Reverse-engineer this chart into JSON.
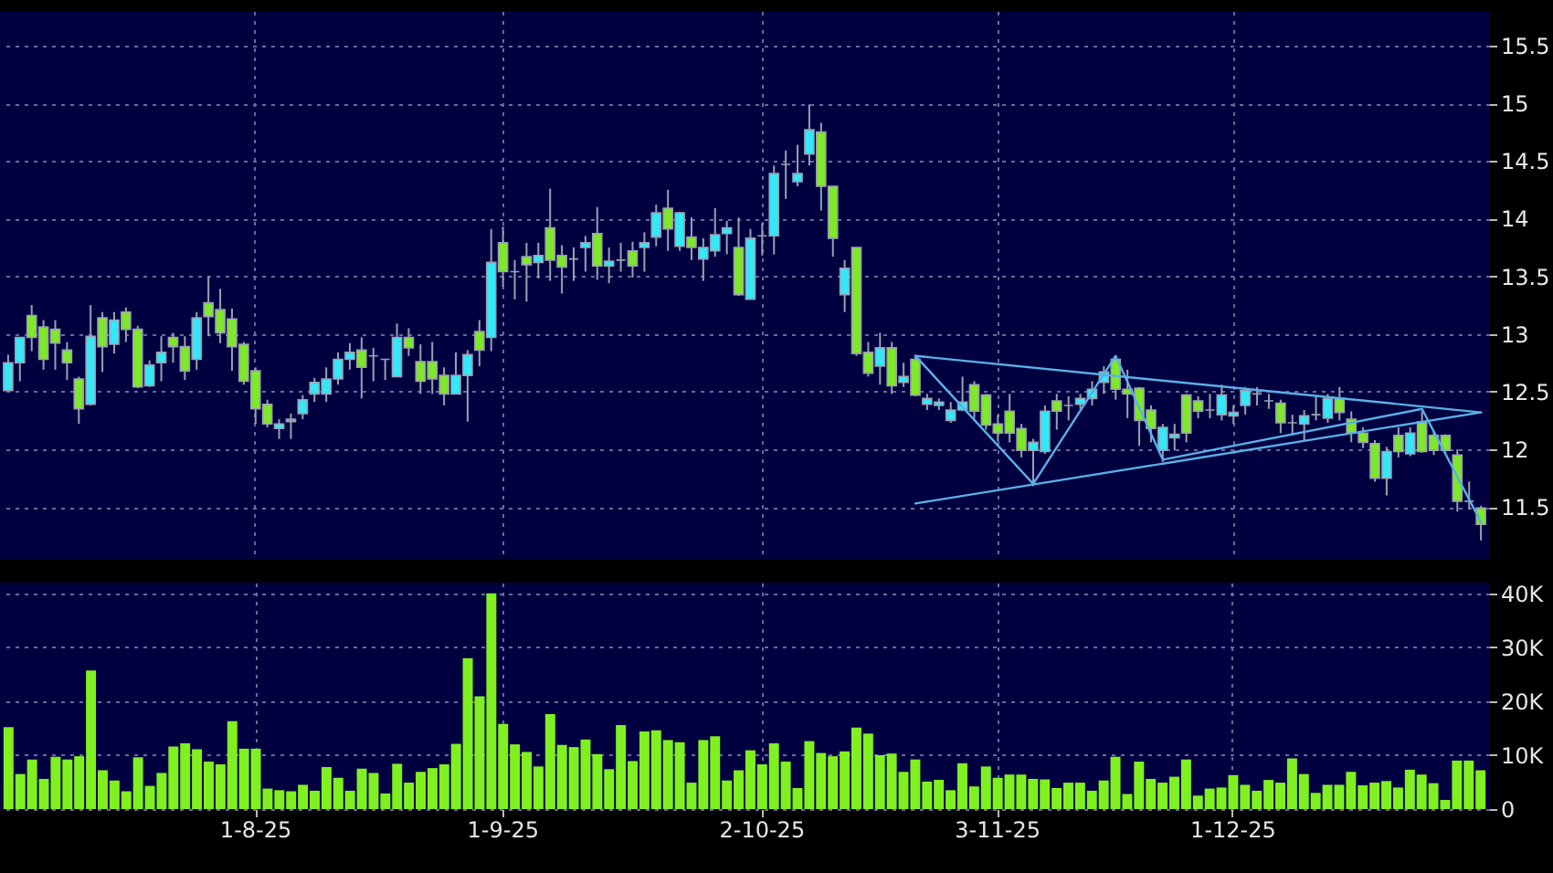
{
  "chart_data": [
    {
      "type": "candlestick",
      "categories": [
        null,
        null,
        null,
        null,
        null,
        null,
        null,
        null,
        null,
        null,
        null,
        null,
        null,
        null,
        null,
        null,
        null,
        null,
        null,
        null,
        null,
        null,
        null,
        null,
        null,
        null,
        null,
        null,
        null,
        null,
        null,
        null,
        null,
        null,
        null,
        null,
        null,
        null,
        null,
        null,
        null,
        null,
        null,
        null,
        null,
        null,
        null,
        null,
        null,
        null,
        null,
        null,
        null,
        null,
        null,
        null,
        null,
        null,
        null,
        null,
        null,
        null,
        null,
        null,
        null,
        null,
        null,
        null,
        null,
        null,
        null,
        null,
        null,
        null,
        null,
        null,
        null,
        null,
        null,
        null,
        null,
        null,
        null,
        null,
        null,
        null,
        null,
        null,
        null,
        null,
        null,
        null,
        null,
        null,
        null,
        null,
        null,
        null,
        null,
        null,
        null,
        null,
        null,
        null,
        null,
        null,
        null,
        null,
        null,
        null,
        null,
        null,
        null,
        null,
        null,
        null,
        null,
        null,
        null,
        null,
        null,
        null,
        null,
        null,
        null,
        null
      ],
      "ohlc": [
        [
          12.51,
          12.82,
          12.51,
          12.75
        ],
        [
          12.75,
          12.97,
          12.59,
          12.97
        ],
        [
          13.16,
          13.25,
          12.85,
          12.97
        ],
        [
          13.06,
          13.12,
          12.69,
          12.78
        ],
        [
          13.04,
          13.12,
          12.69,
          12.92
        ],
        [
          12.86,
          12.93,
          12.6,
          12.75
        ],
        [
          12.61,
          12.63,
          12.22,
          12.35
        ],
        [
          12.39,
          13.25,
          12.38,
          12.98
        ],
        [
          13.14,
          13.19,
          12.67,
          12.89
        ],
        [
          12.91,
          13.19,
          12.83,
          13.12
        ],
        [
          13.19,
          13.23,
          12.93,
          13.04
        ],
        [
          13.04,
          13.07,
          12.53,
          12.54
        ],
        [
          12.55,
          12.77,
          12.54,
          12.73
        ],
        [
          12.75,
          12.98,
          12.59,
          12.84
        ],
        [
          12.97,
          13.01,
          12.75,
          12.89
        ],
        [
          12.89,
          12.98,
          12.6,
          12.68
        ],
        [
          12.78,
          13.19,
          12.69,
          13.14
        ],
        [
          13.27,
          13.5,
          12.98,
          13.15
        ],
        [
          13.21,
          13.39,
          12.92,
          13.01
        ],
        [
          13.13,
          13.22,
          12.68,
          12.89
        ],
        [
          12.91,
          12.93,
          12.56,
          12.59
        ],
        [
          12.68,
          12.71,
          12.22,
          12.35
        ],
        [
          12.39,
          12.43,
          12.19,
          12.22
        ],
        [
          12.18,
          12.26,
          12.09,
          12.22
        ],
        [
          12.24,
          12.31,
          12.09,
          12.26
        ],
        [
          12.31,
          12.47,
          12.26,
          12.43
        ],
        [
          12.48,
          12.62,
          12.41,
          12.58
        ],
        [
          12.48,
          12.71,
          12.41,
          12.61
        ],
        [
          12.61,
          12.84,
          12.56,
          12.78
        ],
        [
          12.78,
          12.92,
          12.69,
          12.84
        ],
        [
          12.86,
          12.97,
          12.44,
          12.71
        ],
        [
          12.81,
          12.88,
          12.59,
          12.81
        ],
        [
          12.78,
          12.78,
          12.6,
          12.78
        ],
        [
          12.63,
          13.09,
          12.63,
          12.97
        ],
        [
          12.97,
          13.05,
          12.81,
          12.88
        ],
        [
          12.76,
          12.91,
          12.48,
          12.59
        ],
        [
          12.76,
          12.93,
          12.48,
          12.61
        ],
        [
          12.64,
          12.71,
          12.38,
          12.48
        ],
        [
          12.48,
          12.84,
          12.48,
          12.64
        ],
        [
          12.64,
          12.86,
          12.24,
          12.82
        ],
        [
          13.02,
          13.12,
          12.72,
          12.86
        ],
        [
          12.97,
          13.91,
          12.85,
          13.62
        ],
        [
          13.79,
          13.93,
          13.41,
          13.54
        ],
        [
          13.54,
          13.64,
          13.3,
          13.54
        ],
        [
          13.67,
          13.79,
          13.28,
          13.6
        ],
        [
          13.62,
          13.79,
          13.48,
          13.68
        ],
        [
          13.92,
          14.26,
          13.46,
          13.64
        ],
        [
          13.68,
          13.77,
          13.35,
          13.58
        ],
        [
          13.65,
          13.75,
          13.46,
          13.65
        ],
        [
          13.75,
          13.85,
          13.54,
          13.79
        ],
        [
          13.87,
          14.1,
          13.47,
          13.59
        ],
        [
          13.59,
          13.75,
          13.44,
          13.63
        ],
        [
          13.64,
          13.79,
          13.54,
          13.64
        ],
        [
          13.72,
          13.8,
          13.49,
          13.59
        ],
        [
          13.75,
          13.88,
          13.54,
          13.79
        ],
        [
          13.84,
          14.12,
          13.76,
          14.05
        ],
        [
          14.09,
          14.25,
          13.72,
          13.91
        ],
        [
          13.76,
          14.06,
          13.72,
          14.05
        ],
        [
          13.84,
          14.01,
          13.64,
          13.75
        ],
        [
          13.65,
          13.83,
          13.46,
          13.75
        ],
        [
          13.72,
          14.09,
          13.67,
          13.86
        ],
        [
          13.87,
          13.98,
          13.69,
          13.92
        ],
        [
          13.75,
          14.01,
          13.33,
          13.34
        ],
        [
          13.3,
          13.91,
          13.3,
          13.83
        ],
        [
          13.85,
          13.96,
          13.68,
          13.85
        ],
        [
          13.85,
          14.46,
          13.69,
          14.39
        ],
        [
          14.47,
          14.59,
          14.17,
          14.47
        ],
        [
          14.32,
          14.64,
          14.28,
          14.39
        ],
        [
          14.56,
          14.99,
          14.46,
          14.77
        ],
        [
          14.75,
          14.83,
          14.07,
          14.28
        ],
        [
          14.28,
          14.28,
          13.67,
          13.83
        ],
        [
          13.34,
          13.64,
          13.19,
          13.57
        ],
        [
          13.75,
          13.75,
          12.81,
          12.83
        ],
        [
          12.84,
          12.93,
          12.63,
          12.66
        ],
        [
          12.72,
          13.01,
          12.56,
          12.88
        ],
        [
          12.88,
          12.93,
          12.48,
          12.55
        ],
        [
          12.58,
          12.75,
          12.54,
          12.63
        ],
        [
          12.78,
          12.8,
          12.46,
          12.47
        ],
        [
          12.39,
          12.48,
          12.34,
          12.44
        ],
        [
          12.38,
          12.44,
          12.34,
          12.41
        ],
        [
          12.25,
          12.41,
          12.23,
          12.34
        ],
        [
          12.34,
          12.63,
          12.33,
          12.41
        ],
        [
          12.56,
          12.59,
          12.27,
          12.33
        ],
        [
          12.47,
          12.48,
          12.17,
          12.21
        ],
        [
          12.22,
          12.3,
          12.07,
          12.14
        ],
        [
          12.33,
          12.48,
          12.06,
          12.14
        ],
        [
          12.18,
          12.22,
          11.93,
          11.99
        ],
        [
          11.99,
          12.09,
          11.68,
          12.06
        ],
        [
          11.98,
          12.38,
          11.96,
          12.33
        ],
        [
          12.42,
          12.48,
          12.17,
          12.33
        ],
        [
          12.38,
          12.46,
          12.25,
          12.38
        ],
        [
          12.39,
          12.48,
          12.35,
          12.44
        ],
        [
          12.44,
          12.59,
          12.38,
          12.52
        ],
        [
          12.58,
          12.72,
          12.48,
          12.67
        ],
        [
          12.78,
          12.78,
          12.43,
          12.52
        ],
        [
          12.52,
          12.69,
          12.27,
          12.48
        ],
        [
          12.53,
          12.54,
          12.03,
          12.25
        ],
        [
          12.34,
          12.38,
          12.06,
          12.18
        ],
        [
          11.99,
          12.22,
          11.89,
          12.19
        ],
        [
          12.1,
          12.22,
          11.99,
          12.13
        ],
        [
          12.47,
          12.48,
          12.06,
          12.14
        ],
        [
          12.42,
          12.46,
          12.27,
          12.33
        ],
        [
          12.34,
          12.48,
          12.27,
          12.34
        ],
        [
          12.3,
          12.56,
          12.25,
          12.47
        ],
        [
          12.29,
          12.38,
          12.22,
          12.32
        ],
        [
          12.38,
          12.54,
          12.3,
          12.51
        ],
        [
          12.48,
          12.54,
          12.38,
          12.48
        ],
        [
          12.42,
          12.48,
          12.35,
          12.42
        ],
        [
          12.4,
          12.43,
          12.14,
          12.23
        ],
        [
          12.23,
          12.3,
          12.12,
          12.23
        ],
        [
          12.22,
          12.34,
          12.07,
          12.29
        ],
        [
          12.3,
          12.46,
          12.25,
          12.3
        ],
        [
          12.27,
          12.48,
          12.23,
          12.44
        ],
        [
          12.44,
          12.54,
          12.25,
          12.32
        ],
        [
          12.26,
          12.33,
          12.06,
          12.14
        ],
        [
          12.14,
          12.19,
          12.01,
          12.06
        ],
        [
          12.05,
          12.08,
          11.72,
          11.75
        ],
        [
          11.75,
          12.02,
          11.6,
          11.98
        ],
        [
          12.12,
          12.19,
          11.93,
          11.98
        ],
        [
          11.96,
          12.19,
          11.94,
          12.14
        ],
        [
          12.24,
          12.33,
          11.97,
          11.98
        ],
        [
          12.12,
          12.16,
          11.95,
          11.99
        ],
        [
          12.12,
          12.13,
          11.98,
          11.99
        ],
        [
          11.95,
          12.0,
          11.46,
          11.55
        ],
        [
          11.55,
          11.72,
          11.48,
          11.55
        ],
        [
          11.49,
          11.51,
          11.21,
          11.35
        ]
      ],
      "colors": [
        "#33e8f8",
        "#33e8f8",
        "#7fe82a",
        "#7fe82a",
        "#7fe82a",
        "#7fe82a",
        "#7fe82a",
        "#33e8f8",
        "#7fe82a",
        "#33e8f8",
        "#7fe82a",
        "#7fe82a",
        "#33e8f8",
        "#33e8f8",
        "#7fe82a",
        "#7fe82a",
        "#33e8f8",
        "#7fe82a",
        "#7fe82a",
        "#7fe82a",
        "#7fe82a",
        "#7fe82a",
        "#7fe82a",
        "#33e8f8",
        "#9aa0b0",
        "#33e8f8",
        "#33e8f8",
        "#33e8f8",
        "#33e8f8",
        "#33e8f8",
        "#7fe82a",
        "#9aa0b0",
        "#9aa0b0",
        "#33e8f8",
        "#7fe82a",
        "#7fe82a",
        "#7fe82a",
        "#7fe82a",
        "#33e8f8",
        "#33e8f8",
        "#7fe82a",
        "#33e8f8",
        "#7fe82a",
        "#9aa0b0",
        "#7fe82a",
        "#33e8f8",
        "#7fe82a",
        "#7fe82a",
        "#9aa0b0",
        "#33e8f8",
        "#7fe82a",
        "#33e8f8",
        "#9aa0b0",
        "#7fe82a",
        "#33e8f8",
        "#33e8f8",
        "#7fe82a",
        "#33e8f8",
        "#7fe82a",
        "#33e8f8",
        "#33e8f8",
        "#33e8f8",
        "#7fe82a",
        "#33e8f8",
        "#9aa0b0",
        "#33e8f8",
        "#9aa0b0",
        "#33e8f8",
        "#33e8f8",
        "#7fe82a",
        "#7fe82a",
        "#33e8f8",
        "#7fe82a",
        "#7fe82a",
        "#33e8f8",
        "#7fe82a",
        "#33e8f8",
        "#7fe82a",
        "#33e8f8",
        "#33e8f8",
        "#33e8f8",
        "#33e8f8",
        "#7fe82a",
        "#7fe82a",
        "#7fe82a",
        "#7fe82a",
        "#7fe82a",
        "#33e8f8",
        "#33e8f8",
        "#7fe82a",
        "#9aa0b0",
        "#33e8f8",
        "#33e8f8",
        "#33e8f8",
        "#7fe82a",
        "#7fe82a",
        "#7fe82a",
        "#7fe82a",
        "#33e8f8",
        "#33e8f8",
        "#7fe82a",
        "#7fe82a",
        "#9aa0b0",
        "#33e8f8",
        "#33e8f8",
        "#33e8f8",
        "#9aa0b0",
        "#9aa0b0",
        "#7fe82a",
        "#9aa0b0",
        "#33e8f8",
        "#9aa0b0",
        "#33e8f8",
        "#7fe82a",
        "#7fe82a",
        "#7fe82a",
        "#7fe82a",
        "#33e8f8",
        "#7fe82a",
        "#33e8f8",
        "#7fe82a",
        "#7fe82a",
        "#7fe82a",
        "#7fe82a",
        "#9aa0b0",
        "#7fe82a"
      ],
      "series": [
        {
          "type": "line",
          "color": "#5ab0e8",
          "values": [
            null,
            null,
            null,
            null,
            null,
            null,
            null,
            null,
            null,
            null,
            null,
            null,
            null,
            null,
            null,
            null,
            null,
            null,
            null,
            null,
            null,
            null,
            null,
            null,
            null,
            null,
            null,
            null,
            null,
            null,
            null,
            null,
            null,
            null,
            null,
            null,
            null,
            null,
            null,
            null,
            null,
            null,
            null,
            null,
            null,
            null,
            null,
            null,
            null,
            null,
            null,
            null,
            null,
            null,
            null,
            null,
            null,
            null,
            null,
            null,
            null,
            null,
            null,
            null,
            null,
            null,
            null,
            null,
            null,
            null,
            null,
            null,
            null,
            null,
            null,
            null,
            null,
            12.81,
            null,
            null,
            null,
            null,
            null,
            null,
            null,
            null,
            null,
            null,
            null,
            null,
            null,
            null,
            null,
            null,
            null,
            null,
            null,
            null,
            null,
            null,
            null,
            null,
            null,
            null,
            null,
            null,
            null,
            null,
            null,
            null,
            null,
            null,
            null,
            null,
            null,
            null,
            null,
            null,
            null,
            null,
            null,
            null,
            null,
            null,
            null,
            12.32
          ]
        },
        {
          "type": "line",
          "color": "#5ab0e8",
          "values": [
            null,
            null,
            null,
            null,
            null,
            null,
            null,
            null,
            null,
            null,
            null,
            null,
            null,
            null,
            null,
            null,
            null,
            null,
            null,
            null,
            null,
            null,
            null,
            null,
            null,
            null,
            null,
            null,
            null,
            null,
            null,
            null,
            null,
            null,
            null,
            null,
            null,
            null,
            null,
            null,
            null,
            null,
            null,
            null,
            null,
            null,
            null,
            null,
            null,
            null,
            null,
            null,
            null,
            null,
            null,
            null,
            null,
            null,
            null,
            null,
            null,
            null,
            null,
            null,
            null,
            null,
            null,
            null,
            null,
            null,
            null,
            null,
            null,
            null,
            null,
            null,
            null,
            11.53,
            null,
            null,
            null,
            null,
            null,
            null,
            null,
            null,
            null,
            null,
            null,
            null,
            null,
            null,
            null,
            null,
            null,
            null,
            null,
            null,
            null,
            null,
            null,
            null,
            null,
            null,
            null,
            null,
            null,
            null,
            null,
            null,
            null,
            null,
            null,
            null,
            null,
            null,
            null,
            null,
            null,
            null,
            null,
            null,
            null,
            null,
            null,
            12.32
          ]
        },
        {
          "type": "line",
          "color": "#5ab0e8",
          "values": [
            null,
            null,
            null,
            null,
            null,
            null,
            null,
            null,
            null,
            null,
            null,
            null,
            null,
            null,
            null,
            null,
            null,
            null,
            null,
            null,
            null,
            null,
            null,
            null,
            null,
            null,
            null,
            null,
            null,
            null,
            null,
            null,
            null,
            null,
            null,
            null,
            null,
            null,
            null,
            null,
            null,
            null,
            null,
            null,
            null,
            null,
            null,
            null,
            null,
            null,
            null,
            null,
            null,
            null,
            null,
            null,
            null,
            null,
            null,
            null,
            null,
            null,
            null,
            null,
            null,
            null,
            null,
            null,
            null,
            null,
            null,
            null,
            null,
            null,
            null,
            null,
            null,
            12.81,
            null,
            null,
            null,
            null,
            null,
            null,
            null,
            null,
            null,
            11.7,
            null,
            null,
            null,
            null,
            null,
            null,
            12.81,
            null,
            null,
            null,
            11.91,
            null,
            null,
            null,
            null,
            null,
            null,
            null,
            null,
            null,
            null,
            null,
            null,
            null,
            null,
            null,
            null,
            null,
            null,
            null,
            null,
            null,
            12.35,
            null,
            null,
            null,
            null,
            11.37
          ]
        }
      ],
      "ylim": [
        11.05,
        15.8
      ],
      "yticks": [
        11.5,
        12,
        12.5,
        13,
        13.5,
        14,
        14.5,
        15,
        15.5
      ],
      "grid": true,
      "tick_labels": "y"
    },
    {
      "type": "bar",
      "categories": [
        null,
        null,
        null,
        null,
        null,
        null,
        null,
        null,
        null,
        null,
        null,
        null,
        null,
        null,
        null,
        null,
        null,
        null,
        null,
        null,
        null,
        "1-8-25",
        null,
        null,
        null,
        null,
        null,
        null,
        null,
        null,
        null,
        null,
        null,
        null,
        null,
        null,
        null,
        null,
        null,
        null,
        null,
        null,
        "1-9-25",
        null,
        null,
        null,
        null,
        null,
        null,
        null,
        null,
        null,
        null,
        null,
        null,
        null,
        null,
        null,
        null,
        null,
        null,
        null,
        null,
        null,
        "2-10-25",
        null,
        null,
        null,
        null,
        null,
        null,
        null,
        null,
        null,
        null,
        null,
        null,
        null,
        null,
        null,
        null,
        null,
        null,
        null,
        "3-11-25",
        null,
        null,
        null,
        null,
        null,
        null,
        null,
        null,
        null,
        null,
        null,
        null,
        null,
        null,
        null,
        null,
        null,
        null,
        null,
        "1-12-25",
        null,
        null,
        null,
        null,
        null,
        null,
        null,
        null,
        null,
        null,
        null,
        null,
        null,
        null,
        null,
        null,
        null,
        null,
        null,
        null,
        null
      ],
      "values": [
        15.2,
        6.5,
        9.2,
        5.6,
        9.7,
        9.2,
        9.8,
        25.7,
        7.2,
        5.3,
        3.3,
        9.6,
        4.3,
        6.7,
        11.6,
        12.2,
        11.1,
        8.8,
        8.3,
        16.3,
        11.2,
        11.2,
        3.8,
        3.5,
        3.3,
        4.5,
        3.4,
        7.8,
        5.8,
        3.4,
        7.5,
        6.7,
        2.9,
        8.4,
        4.9,
        6.9,
        7.6,
        8.3,
        12.1,
        28.0,
        20.9,
        40.0,
        15.8,
        12.0,
        10.6,
        7.9,
        17.6,
        11.9,
        11.5,
        12.9,
        10.2,
        7.4,
        15.6,
        8.9,
        14.4,
        14.6,
        12.8,
        12.4,
        4.9,
        12.8,
        13.5,
        5.3,
        7.2,
        10.9,
        8.3,
        12.2,
        8.8,
        3.9,
        12.6,
        10.4,
        9.8,
        10.7,
        15.1,
        14.0,
        10.0,
        10.3,
        6.9,
        9.2,
        5.1,
        5.4,
        3.5,
        8.5,
        4.2,
        7.9,
        5.8,
        6.4,
        6.4,
        5.6,
        5.5,
        3.9,
        4.9,
        4.9,
        3.4,
        5.3,
        9.7,
        2.8,
        8.8,
        5.6,
        4.9,
        6.0,
        9.2,
        2.5,
        3.8,
        4.0,
        6.3,
        4.5,
        3.4,
        5.4,
        4.9,
        9.4,
        6.5,
        3.0,
        4.5,
        4.5,
        6.9,
        4.4,
        4.9,
        5.2,
        4.0,
        7.3,
        6.4,
        4.8,
        1.7,
        9.0,
        9.0,
        7.2
      ],
      "color": "#80f020",
      "ylim": [
        0,
        42
      ],
      "yticks": [
        0,
        {
          "value": 10,
          "label": "10K"
        },
        {
          "value": 20,
          "label": "20K"
        },
        {
          "value": 30,
          "label": "30K"
        },
        {
          "value": 40,
          "label": "40K"
        }
      ],
      "grid": true
    }
  ]
}
